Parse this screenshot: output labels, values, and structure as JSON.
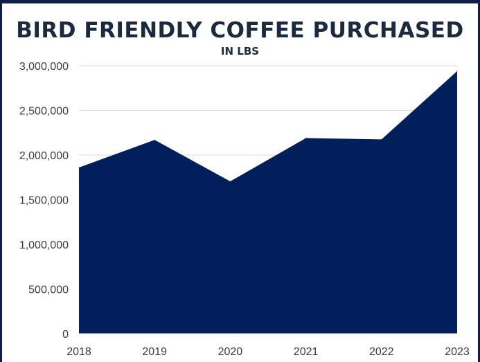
{
  "chart_data": {
    "type": "area",
    "title": "BIRD FRIENDLY COFFEE PURCHASED",
    "subtitle": "IN LBS",
    "xlabel": "",
    "ylabel": "",
    "categories": [
      "2018",
      "2019",
      "2020",
      "2021",
      "2022",
      "2023"
    ],
    "values": [
      1860000,
      2170000,
      1705000,
      2190000,
      2175000,
      2940000
    ],
    "ylim": [
      0,
      3000000
    ],
    "yticks": [
      0,
      500000,
      1000000,
      1500000,
      2000000,
      2500000,
      3000000
    ],
    "ytick_labels": [
      "0",
      "500,000",
      "1,000,000",
      "1,500,000",
      "2,000,000",
      "2,500,000",
      "3,000,000"
    ],
    "grid": true,
    "legend": "none",
    "fill_color": "#001f5b"
  }
}
